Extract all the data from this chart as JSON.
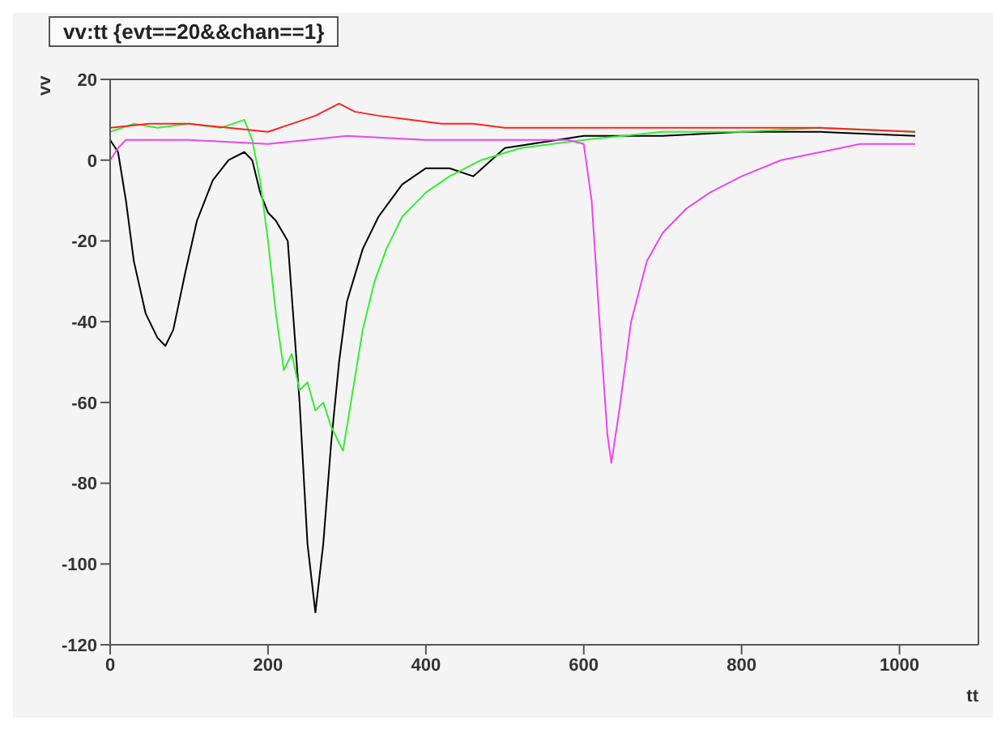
{
  "chart_data": {
    "type": "line",
    "title": "vv:tt {evt==20&&chan==1}",
    "xlabel": "tt",
    "ylabel": "vv",
    "xlim": [
      0,
      1100
    ],
    "xticks": [
      0,
      200,
      400,
      600,
      800,
      1000
    ],
    "ylim": [
      -120,
      20
    ],
    "yticks": [
      -120,
      -100,
      -80,
      -60,
      -40,
      -20,
      0,
      20
    ],
    "marker": "none",
    "line_style": "solid",
    "series": [
      {
        "color": "#000000",
        "x": [
          0,
          10,
          20,
          30,
          45,
          60,
          70,
          80,
          95,
          110,
          130,
          150,
          170,
          180,
          190,
          200,
          210,
          225,
          240,
          250,
          260,
          270,
          280,
          290,
          300,
          320,
          340,
          370,
          400,
          430,
          460,
          500,
          600,
          700,
          800,
          900,
          1020
        ],
        "values": [
          5,
          2,
          -10,
          -25,
          -38,
          -44,
          -46,
          -42,
          -28,
          -15,
          -5,
          0,
          2,
          0,
          -8,
          -13,
          -15,
          -20,
          -60,
          -95,
          -112,
          -95,
          -70,
          -50,
          -35,
          -22,
          -14,
          -6,
          -2,
          -2,
          -4,
          3,
          6,
          6,
          7,
          7,
          6
        ]
      },
      {
        "color": "#33ee33",
        "x": [
          0,
          30,
          60,
          100,
          140,
          170,
          180,
          190,
          200,
          210,
          220,
          230,
          240,
          250,
          260,
          270,
          280,
          290,
          295,
          305,
          320,
          335,
          350,
          370,
          400,
          430,
          470,
          520,
          600,
          700,
          800,
          900,
          1020
        ],
        "values": [
          7,
          9,
          8,
          9,
          8,
          10,
          5,
          -5,
          -20,
          -38,
          -52,
          -48,
          -57,
          -55,
          -62,
          -60,
          -66,
          -70,
          -72,
          -60,
          -42,
          -30,
          -22,
          -14,
          -8,
          -4,
          0,
          3,
          5,
          7,
          7,
          8,
          7
        ]
      },
      {
        "color": "#ff2222",
        "x": [
          0,
          50,
          100,
          150,
          200,
          230,
          260,
          280,
          290,
          310,
          340,
          380,
          420,
          460,
          500,
          550,
          600,
          700,
          800,
          900,
          1020
        ],
        "values": [
          8,
          9,
          9,
          8,
          7,
          9,
          11,
          13,
          14,
          12,
          11,
          10,
          9,
          9,
          8,
          8,
          8,
          8,
          8,
          8,
          7
        ]
      },
      {
        "color": "#ee44ee",
        "x": [
          0,
          10,
          20,
          50,
          100,
          200,
          300,
          400,
          500,
          580,
          600,
          610,
          620,
          630,
          635,
          645,
          660,
          680,
          700,
          730,
          760,
          800,
          850,
          900,
          950,
          1020
        ],
        "values": [
          0,
          3,
          5,
          5,
          5,
          4,
          6,
          5,
          5,
          5,
          4,
          -10,
          -40,
          -68,
          -75,
          -62,
          -40,
          -25,
          -18,
          -12,
          -8,
          -4,
          0,
          2,
          4,
          4
        ]
      }
    ]
  }
}
